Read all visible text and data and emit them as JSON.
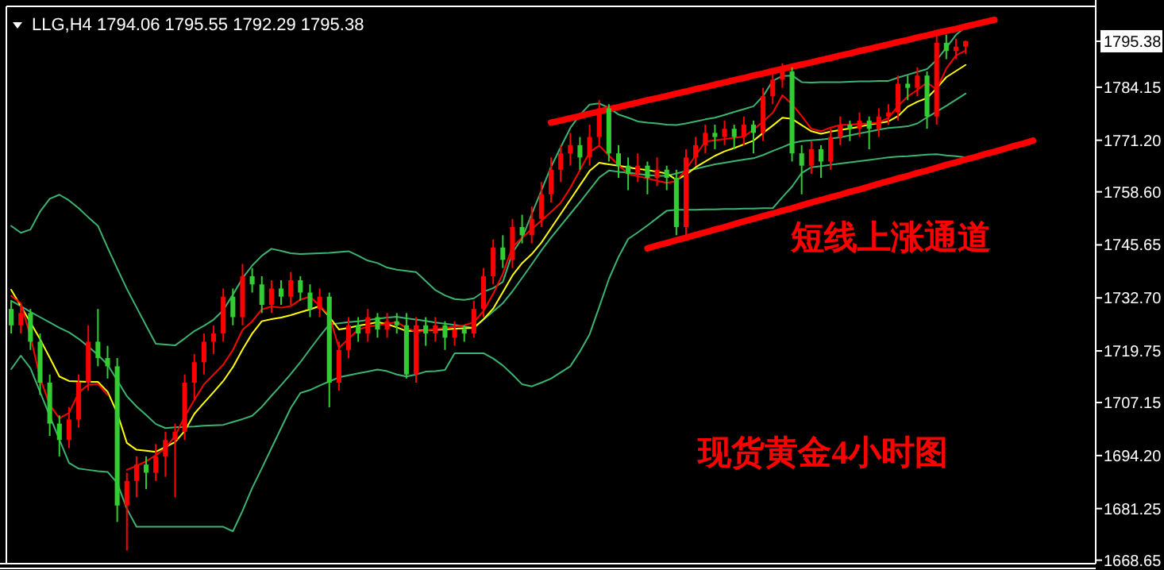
{
  "chart_data": {
    "type": "candlestick",
    "title": "LLG,H4 1794.06 1795.55 1792.29 1795.38",
    "categories": [
      null,
      null,
      null,
      null,
      null,
      null,
      null,
      null,
      null,
      null,
      null,
      null,
      null,
      null,
      null,
      null,
      null,
      null,
      null,
      null,
      null,
      null,
      null,
      null,
      null,
      null,
      null,
      null,
      null,
      null,
      null,
      null,
      null,
      null,
      null,
      null,
      null,
      null,
      null,
      null,
      null,
      null,
      null,
      null,
      null,
      null,
      null,
      null,
      null,
      null,
      null,
      null,
      null,
      null,
      null,
      null,
      null,
      null,
      null,
      null,
      null,
      null,
      null,
      null,
      null,
      null,
      null,
      null,
      null,
      null,
      null,
      null,
      null,
      null,
      null,
      null,
      null,
      null,
      null,
      null,
      null,
      null,
      null,
      null,
      null,
      null,
      null,
      null,
      null,
      null,
      null,
      null,
      null,
      null,
      null,
      null,
      null,
      null,
      null,
      null,
      null,
      null,
      null,
      null,
      null,
      null,
      null,
      null,
      null,
      null,
      null,
      null,
      null
    ],
    "ohlc": [
      [
        1730,
        1732,
        1724,
        1726
      ],
      [
        1726,
        1731,
        1724,
        1729
      ],
      [
        1729,
        1730,
        1720,
        1722
      ],
      [
        1722,
        1724,
        1709,
        1712
      ],
      [
        1712,
        1714,
        1699,
        1702
      ],
      [
        1702,
        1704,
        1694,
        1698
      ],
      [
        1698,
        1706,
        1696,
        1703
      ],
      [
        1703,
        1714,
        1701,
        1712
      ],
      [
        1712,
        1726,
        1710,
        1722
      ],
      [
        1722,
        1730,
        1716,
        1718
      ],
      [
        1718,
        1721,
        1713,
        1716
      ],
      [
        1716,
        1718,
        1678,
        1682
      ],
      [
        1682,
        1690,
        1671,
        1688
      ],
      [
        1688,
        1694,
        1684,
        1692
      ],
      [
        1692,
        1694,
        1686,
        1690
      ],
      [
        1690,
        1697,
        1688,
        1694
      ],
      [
        1694,
        1700,
        1689,
        1698
      ],
      [
        1698,
        1702,
        1684,
        1700
      ],
      [
        1700,
        1714,
        1698,
        1712
      ],
      [
        1712,
        1719,
        1708,
        1717
      ],
      [
        1717,
        1724,
        1714,
        1722
      ],
      [
        1722,
        1726,
        1719,
        1724
      ],
      [
        1724,
        1735,
        1722,
        1733
      ],
      [
        1733,
        1735,
        1726,
        1728
      ],
      [
        1728,
        1741,
        1726,
        1738
      ],
      [
        1738,
        1740,
        1734,
        1736
      ],
      [
        1736,
        1738,
        1729,
        1731
      ],
      [
        1731,
        1737,
        1729,
        1735
      ],
      [
        1735,
        1737,
        1731,
        1733
      ],
      [
        1733,
        1739,
        1731,
        1737
      ],
      [
        1737,
        1738,
        1732,
        1734
      ],
      [
        1734,
        1736,
        1728,
        1730
      ],
      [
        1730,
        1735,
        1728,
        1733
      ],
      [
        1733,
        1734,
        1706,
        1712
      ],
      [
        1712,
        1722,
        1710,
        1720
      ],
      [
        1720,
        1728,
        1718,
        1726
      ],
      [
        1726,
        1728,
        1722,
        1724
      ],
      [
        1724,
        1730,
        1722,
        1728
      ],
      [
        1728,
        1729,
        1723,
        1725
      ],
      [
        1725,
        1729,
        1723,
        1727
      ],
      [
        1727,
        1729,
        1724,
        1726
      ],
      [
        1726,
        1729,
        1713,
        1714
      ],
      [
        1714,
        1728,
        1712,
        1726
      ],
      [
        1726,
        1728,
        1721,
        1724
      ],
      [
        1724,
        1728,
        1722,
        1726
      ],
      [
        1726,
        1727,
        1720,
        1723
      ],
      [
        1723,
        1727,
        1721,
        1725
      ],
      [
        1725,
        1726,
        1722,
        1724
      ],
      [
        1724,
        1732,
        1723,
        1730
      ],
      [
        1730,
        1740,
        1728,
        1738
      ],
      [
        1738,
        1747,
        1736,
        1745
      ],
      [
        1745,
        1748,
        1740,
        1742
      ],
      [
        1742,
        1752,
        1740,
        1750
      ],
      [
        1750,
        1753,
        1746,
        1748
      ],
      [
        1748,
        1755,
        1746,
        1752
      ],
      [
        1752,
        1761,
        1750,
        1758
      ],
      [
        1758,
        1767,
        1756,
        1764
      ],
      [
        1764,
        1770,
        1761,
        1768
      ],
      [
        1768,
        1773,
        1765,
        1770
      ],
      [
        1770,
        1772,
        1764,
        1767
      ],
      [
        1767,
        1775,
        1765,
        1772
      ],
      [
        1772,
        1781,
        1770,
        1779
      ],
      [
        1779,
        1780,
        1766,
        1768
      ],
      [
        1768,
        1770,
        1762,
        1765
      ],
      [
        1765,
        1767,
        1759,
        1763
      ],
      [
        1763,
        1768,
        1761,
        1765
      ],
      [
        1765,
        1766,
        1758,
        1762
      ],
      [
        1762,
        1767,
        1760,
        1764
      ],
      [
        1764,
        1765,
        1759,
        1762
      ],
      [
        1762,
        1764,
        1748,
        1750
      ],
      [
        1750,
        1769,
        1748,
        1767
      ],
      [
        1767,
        1772,
        1765,
        1770
      ],
      [
        1770,
        1775,
        1768,
        1773
      ],
      [
        1773,
        1775,
        1769,
        1772
      ],
      [
        1772,
        1776,
        1770,
        1774
      ],
      [
        1774,
        1775,
        1769,
        1772
      ],
      [
        1772,
        1777,
        1770,
        1775
      ],
      [
        1775,
        1776,
        1768,
        1773
      ],
      [
        1773,
        1784,
        1771,
        1782
      ],
      [
        1782,
        1788,
        1780,
        1786
      ],
      [
        1786,
        1790,
        1784,
        1788
      ],
      [
        1788,
        1789,
        1766,
        1768
      ],
      [
        1768,
        1770,
        1758,
        1765
      ],
      [
        1765,
        1771,
        1763,
        1769
      ],
      [
        1769,
        1770,
        1762,
        1766
      ],
      [
        1766,
        1774,
        1764,
        1772
      ],
      [
        1772,
        1777,
        1770,
        1775
      ],
      [
        1775,
        1776,
        1771,
        1774
      ],
      [
        1774,
        1778,
        1772,
        1776
      ],
      [
        1776,
        1777,
        1769,
        1774
      ],
      [
        1774,
        1779,
        1772,
        1777
      ],
      [
        1777,
        1780,
        1775,
        1778
      ],
      [
        1778,
        1787,
        1776,
        1785
      ],
      [
        1785,
        1787,
        1781,
        1784
      ],
      [
        1784,
        1789,
        1782,
        1787
      ],
      [
        1787,
        1788,
        1774,
        1777
      ],
      [
        1777,
        1797,
        1775,
        1795
      ],
      [
        1795,
        1797,
        1791,
        1793
      ],
      [
        1793,
        1796,
        1791,
        1794.06
      ],
      [
        1794.06,
        1795.55,
        1792.29,
        1795.38
      ],
      null,
      null,
      null,
      null,
      null,
      null,
      null,
      null,
      null,
      null,
      null,
      null,
      null
    ],
    "colors": [
      "#32cd32",
      "#ff0000",
      "#32cd32",
      "#32cd32",
      "#32cd32",
      "#32cd32",
      "#ff0000",
      "#ff0000",
      "#ff0000",
      "#32cd32",
      "#32cd32",
      "#32cd32",
      "#ff0000",
      "#ff0000",
      "#32cd32",
      "#ff0000",
      "#ff0000",
      "#ff0000",
      "#ff0000",
      "#ff0000",
      "#ff0000",
      "#ff0000",
      "#ff0000",
      "#32cd32",
      "#ff0000",
      "#32cd32",
      "#32cd32",
      "#ff0000",
      "#32cd32",
      "#ff0000",
      "#32cd32",
      "#32cd32",
      "#ff0000",
      "#32cd32",
      "#ff0000",
      "#ff0000",
      "#32cd32",
      "#ff0000",
      "#32cd32",
      "#ff0000",
      "#32cd32",
      "#32cd32",
      "#ff0000",
      "#32cd32",
      "#ff0000",
      "#32cd32",
      "#ff0000",
      "#32cd32",
      "#ff0000",
      "#ff0000",
      "#ff0000",
      "#32cd32",
      "#ff0000",
      "#32cd32",
      "#ff0000",
      "#ff0000",
      "#ff0000",
      "#ff0000",
      "#ff0000",
      "#32cd32",
      "#ff0000",
      "#ff0000",
      "#32cd32",
      "#32cd32",
      "#32cd32",
      "#ff0000",
      "#32cd32",
      "#ff0000",
      "#32cd32",
      "#32cd32",
      "#ff0000",
      "#ff0000",
      "#ff0000",
      "#32cd32",
      "#ff0000",
      "#32cd32",
      "#ff0000",
      "#32cd32",
      "#ff0000",
      "#ff0000",
      "#ff0000",
      "#32cd32",
      "#32cd32",
      "#ff0000",
      "#32cd32",
      "#ff0000",
      "#ff0000",
      "#32cd32",
      "#ff0000",
      "#32cd32",
      "#ff0000",
      "#ff0000",
      "#ff0000",
      "#32cd32",
      "#ff0000",
      "#32cd32",
      "#ff0000",
      "#32cd32",
      "#ff0000",
      "#ff0000",
      null,
      null,
      null,
      null,
      null,
      null,
      null,
      null,
      null,
      null,
      null,
      null,
      null
    ],
    "ylim": [
      1667.8,
      1803.9
    ],
    "yticks": [
      {
        "value": 1668.65,
        "label": "1668.65"
      },
      {
        "value": 1681.25,
        "label": "1681.25"
      },
      {
        "value": 1694.2,
        "label": "1694.20"
      },
      {
        "value": 1707.15,
        "label": "1707.15"
      },
      {
        "value": 1719.75,
        "label": "1719.75"
      },
      {
        "value": 1732.7,
        "label": "1732.70"
      },
      {
        "value": 1745.65,
        "label": "1745.65"
      },
      {
        "value": 1758.6,
        "label": "1758.60"
      },
      {
        "value": 1771.2,
        "label": "1771.20"
      },
      {
        "value": 1784.15,
        "label": "1784.15"
      },
      {
        "value": 1795.38,
        "label": "1795.38"
      }
    ],
    "series": [
      {
        "type": "line",
        "color": "#3cb371",
        "values": [
          1750.3,
          1748.6,
          1749.4,
          1753.8,
          1756.9,
          1757.9,
          1756.5,
          1754.6,
          1752.4,
          1750.3,
          1745.0,
          1739.9,
          1734.9,
          1730.4,
          1725.9,
          1721.5,
          1721.3,
          1721.1,
          1722.8,
          1724.6,
          1725.9,
          1727.4,
          1729.7,
          1733.5,
          1737.5,
          1740.6,
          1743.0,
          1744.7,
          1744.2,
          1743.6,
          1743.4,
          1743.5,
          1743.6,
          1743.7,
          1743.9,
          1744.1,
          1743.0,
          1741.8,
          1741.2,
          1740.1,
          1739.6,
          1739.3,
          1739.0,
          1736.8,
          1734.6,
          1733.3,
          1732.4,
          1732.2,
          1732.6,
          1734.2,
          1735.1,
          1736.6,
          1743.7,
          1747.3,
          1753.2,
          1758.9,
          1764.7,
          1769.5,
          1774.2,
          1777.4,
          1779.9,
          1780.2,
          1779.1,
          1777.5,
          1776.7,
          1775.8,
          1775.5,
          1775.3,
          1775.0,
          1774.9,
          1775.3,
          1775.8,
          1776.3,
          1776.7,
          1777.4,
          1778.1,
          1778.8,
          1779.5,
          1782.0,
          1785.7,
          1786.9,
          1787.0,
          1785.4,
          1785.3,
          1785.4,
          1785.4,
          1785.4,
          1785.5,
          1785.6,
          1785.6,
          1785.7,
          1785.7,
          1786.5,
          1787.2,
          1787.9,
          1788.6,
          1790.8,
          1793.8,
          1796.9,
          1798.9,
          null,
          null,
          null,
          null,
          null,
          null,
          null,
          null,
          null,
          null,
          null,
          null,
          null
        ]
      },
      {
        "type": "line",
        "color": "#3cb371",
        "values": [
          1732.0,
          1730.7,
          1729.3,
          1728.0,
          1726.7,
          1725.4,
          1724.3,
          1722.7,
          1720.8,
          1718.8,
          1716.4,
          1712.6,
          1708.7,
          1706.2,
          1704.1,
          1701.9,
          1700.9,
          1701.1,
          1701.2,
          1701.3,
          1701.5,
          1701.6,
          1701.7,
          1702.4,
          1703.1,
          1703.9,
          1706.1,
          1708.8,
          1711.4,
          1714.1,
          1717.0,
          1720.2,
          1723.3,
          1726.2,
          1726.5,
          1726.8,
          1727.0,
          1727.3,
          1727.6,
          1727.9,
          1728.1,
          1727.7,
          1727.4,
          1727.1,
          1726.7,
          1726.4,
          1726.1,
          1725.7,
          1725.4,
          1727.4,
          1729.4,
          1731.4,
          1734.3,
          1737.6,
          1740.9,
          1744.3,
          1747.4,
          1750.3,
          1753.2,
          1756.1,
          1759.1,
          1762.1,
          1763.8,
          1763.5,
          1763.3,
          1763.0,
          1762.7,
          1762.5,
          1762.5,
          1763.1,
          1763.7,
          1764.2,
          1764.8,
          1765.3,
          1765.7,
          1766.1,
          1766.5,
          1766.8,
          1767.6,
          1768.6,
          1769.5,
          1770.5,
          1771.0,
          1771.2,
          1771.4,
          1771.6,
          1771.9,
          1772.4,
          1772.9,
          1773.3,
          1773.8,
          1774.2,
          1774.4,
          1774.6,
          1775.3,
          1776.8,
          1778.2,
          1779.6,
          1781.1,
          1782.6,
          null,
          null,
          null,
          null,
          null,
          null,
          null,
          null,
          null,
          null,
          null,
          null,
          null
        ]
      },
      {
        "type": "line",
        "color": "#3cb371",
        "values": [
          1715.3,
          1718.6,
          1715.5,
          1709.7,
          1703.9,
          1698.1,
          1692.4,
          1691.0,
          1690.7,
          1690.4,
          1690.2,
          1687.5,
          1681.2,
          1676.8,
          1676.8,
          1676.8,
          1676.8,
          1676.8,
          1676.8,
          1676.8,
          1676.8,
          1676.8,
          1676.8,
          1675.7,
          1680.7,
          1686.3,
          1691.1,
          1696.0,
          1700.9,
          1705.8,
          1709.5,
          1710.2,
          1711.3,
          1712.3,
          1713.3,
          1713.8,
          1714.3,
          1714.7,
          1715.2,
          1714.8,
          1714.0,
          1713.5,
          1714.0,
          1714.7,
          1714.8,
          1715.1,
          1719.2,
          1719.2,
          1719.2,
          1719.2,
          1717.9,
          1716.2,
          1714.0,
          1711.6,
          1711.1,
          1712.0,
          1713.0,
          1714.5,
          1716.0,
          1719.6,
          1723.8,
          1730.5,
          1737.3,
          1742.7,
          1747.1,
          1748.7,
          1750.4,
          1752.2,
          1754.0,
          1754.2,
          1754.2,
          1754.2,
          1754.3,
          1754.3,
          1754.4,
          1754.4,
          1754.5,
          1754.5,
          1754.6,
          1754.6,
          1757.3,
          1759.9,
          1763.2,
          1764.6,
          1764.9,
          1765.2,
          1765.5,
          1765.8,
          1766.1,
          1766.4,
          1766.7,
          1767.0,
          1767.2,
          1767.3,
          1767.5,
          1767.7,
          1767.8,
          1767.5,
          1767.3,
          1767.0,
          null,
          null,
          null,
          null,
          null,
          null,
          null,
          null,
          null,
          null,
          null,
          null,
          null
        ]
      },
      {
        "type": "line",
        "color": "#ffff00",
        "values": [
          1734.7,
          1730.7,
          1726.7,
          1722.6,
          1718.1,
          1713.5,
          1712.4,
          1712.3,
          1712.2,
          1712.2,
          1709.8,
          1704.6,
          1697.3,
          1695.6,
          1695.4,
          1695.1,
          1696.3,
          1697.5,
          1700.2,
          1704.4,
          1707.1,
          1709.7,
          1712.4,
          1715.8,
          1720.1,
          1724.0,
          1727.0,
          1727.5,
          1727.9,
          1728.5,
          1729.2,
          1729.9,
          1730.7,
          1728.1,
          1725.0,
          1725.4,
          1725.9,
          1726.3,
          1726.8,
          1726.3,
          1725.5,
          1724.6,
          1724.7,
          1724.8,
          1724.9,
          1725.0,
          1725.2,
          1725.3,
          1725.4,
          1727.5,
          1730.1,
          1734.1,
          1738.2,
          1741.2,
          1743.4,
          1746.2,
          1749.7,
          1753.2,
          1756.7,
          1760.2,
          1763.7,
          1765.7,
          1765.3,
          1765.0,
          1764.6,
          1764.2,
          1763.9,
          1763.5,
          1763.1,
          1761.5,
          1762.8,
          1764.6,
          1766.0,
          1767.4,
          1768.5,
          1769.3,
          1770.2,
          1771.1,
          1773.0,
          1774.8,
          1776.7,
          1776.4,
          1774.9,
          1773.4,
          1772.8,
          1773.3,
          1773.7,
          1774.1,
          1774.5,
          1775.0,
          1775.4,
          1775.8,
          1777.1,
          1779.4,
          1780.6,
          1781.5,
          1783.9,
          1786.6,
          1788.1,
          1789.6,
          null,
          null,
          null,
          null,
          null,
          null,
          null,
          null,
          null,
          null,
          null,
          null,
          null
        ]
      },
      {
        "type": "line",
        "color": "#ff0000",
        "values": [
          1733.2,
          1731.4,
          1723.3,
          1713.1,
          1706.6,
          1703.3,
          1704.6,
          1709.6,
          1711.5,
          1711.7,
          1709.0,
          null,
          1690.7,
          1691.7,
          1692.8,
          1694.3,
          1696.0,
          1699.0,
          1703.7,
          1707.8,
          1711.6,
          1714.0,
          1716.4,
          1720.0,
          1724.9,
          1727.0,
          1729.9,
          1730.6,
          1730.3,
          1730.7,
          1732.3,
          1733.0,
          1730.8,
          1728.4,
          1720.5,
          1722.7,
          1725.0,
          1725.7,
          1726.0,
          1726.4,
          1726.8,
          1725.4,
          1724.4,
          1724.7,
          1725.1,
          1725.4,
          1725.7,
          1726.0,
          1726.8,
          1729.5,
          1733.7,
          1738.6,
          1745.2,
          1747.4,
          1749.5,
          1751.6,
          1753.7,
          1755.9,
          1759.6,
          1763.9,
          1768.3,
          1769.9,
          1767.5,
          1765.1,
          1763.0,
          1762.4,
          1761.9,
          1761.3,
          1760.8,
          1761.2,
          1764.1,
          1767.5,
          1770.9,
          1771.2,
          1771.5,
          1771.8,
          1772.1,
          1773.8,
          1775.8,
          1777.9,
          1782.2,
          1780.0,
          1777.1,
          1774.0,
          1773.4,
          1774.3,
          1774.9,
          1775.0,
          1775.2,
          1775.3,
          1775.5,
          1776.7,
          1779.6,
          1781.9,
          1783.5,
          1785.3,
          1783.6,
          1788.7,
          1791.9,
          1793.1,
          null,
          null,
          null,
          null,
          null,
          null,
          null,
          null,
          null,
          null,
          null,
          null,
          null
        ]
      },
      {
        "type": "line",
        "color": "#ff0000",
        "values": [
          null,
          null,
          null,
          null,
          null,
          null,
          null,
          null,
          null,
          null,
          null,
          null,
          null,
          null,
          null,
          null,
          null,
          null,
          null,
          null,
          null,
          null,
          null,
          null,
          null,
          null,
          null,
          null,
          null,
          null,
          null,
          null,
          null,
          null,
          null,
          null,
          null,
          null,
          null,
          null,
          null,
          null,
          null,
          null,
          null,
          null,
          null,
          null,
          null,
          null,
          null,
          null,
          null,
          null,
          null,
          null,
          1775.5,
          1776.0,
          1776.6,
          1777.1,
          1777.7,
          1778.2,
          1778.8,
          1779.3,
          1779.9,
          1780.4,
          1781.0,
          1781.5,
          1782.0,
          1782.6,
          1783.1,
          1783.7,
          1784.2,
          1784.8,
          1785.3,
          1785.9,
          1786.4,
          1787.0,
          1787.5,
          1788.1,
          1788.6,
          1789.2,
          1789.7,
          1790.2,
          1790.8,
          1791.3,
          1791.9,
          1792.4,
          1793.0,
          1793.5,
          1794.1,
          1794.6,
          1795.2,
          1795.7,
          1796.3,
          1796.8,
          1797.4,
          1797.9,
          1798.4,
          1799.0,
          1799.5,
          1800.1,
          1800.6,
          null,
          null,
          null,
          null,
          null,
          null,
          null,
          null,
          null,
          null
        ]
      },
      {
        "type": "line",
        "color": "#ff0000",
        "values": [
          null,
          null,
          null,
          null,
          null,
          null,
          null,
          null,
          null,
          null,
          null,
          null,
          null,
          null,
          null,
          null,
          null,
          null,
          null,
          null,
          null,
          null,
          null,
          null,
          null,
          null,
          null,
          null,
          null,
          null,
          null,
          null,
          null,
          null,
          null,
          null,
          null,
          null,
          null,
          null,
          null,
          null,
          null,
          null,
          null,
          null,
          null,
          null,
          null,
          null,
          null,
          null,
          null,
          null,
          null,
          null,
          null,
          null,
          null,
          null,
          null,
          null,
          null,
          null,
          null,
          null,
          1744.8,
          1745.5,
          1746.1,
          1746.8,
          1747.4,
          1748.1,
          1748.7,
          1749.4,
          1750.0,
          1750.7,
          1751.4,
          1752.0,
          1752.7,
          1753.3,
          1754.0,
          1754.6,
          1755.3,
          1756.0,
          1756.6,
          1757.3,
          1757.9,
          1758.6,
          1759.2,
          1759.9,
          1760.6,
          1761.2,
          1761.9,
          1762.5,
          1763.2,
          1763.8,
          1764.5,
          1765.2,
          1765.8,
          1766.5,
          1767.1,
          1767.8,
          1768.4,
          1769.1,
          1769.8,
          1770.4,
          1771.1,
          null,
          null,
          null,
          null,
          null,
          null
        ]
      }
    ],
    "annotations": [
      "短线上涨通道",
      "现货黄金4小时图"
    ]
  }
}
